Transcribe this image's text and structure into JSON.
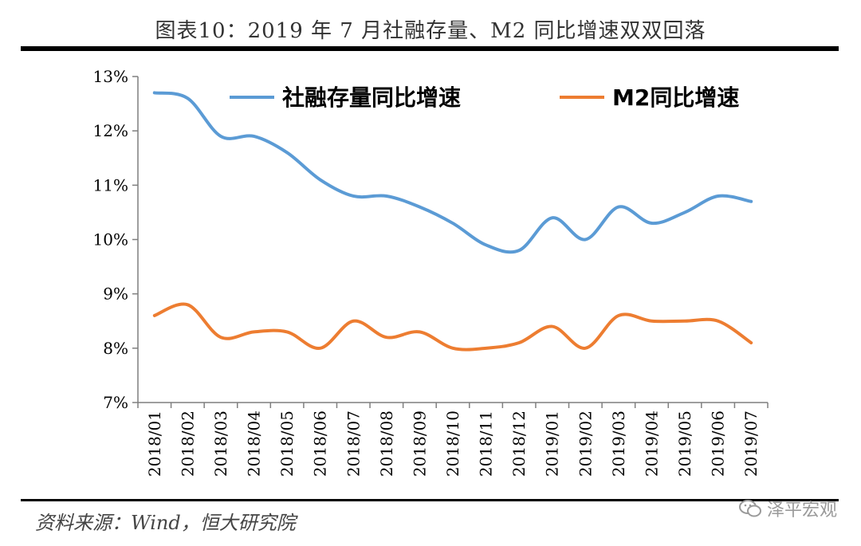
{
  "header": {
    "title": "图表10：2019 年 7 月社融存量、M2 同比增速双双回落"
  },
  "footer": {
    "source": "资料来源：Wind，恒大研究院",
    "watermark": "泽平宏观"
  },
  "colors": {
    "series1": "#5b9bd5",
    "series2": "#ed7d31",
    "axis": "#7f7f7f"
  },
  "chart_data": {
    "type": "line",
    "title": "",
    "xlabel": "",
    "ylabel": "",
    "ylim": [
      7,
      13
    ],
    "yticks": [
      7,
      8,
      9,
      10,
      11,
      12,
      13
    ],
    "ytick_labels": [
      "7%",
      "8%",
      "9%",
      "10%",
      "11%",
      "12%",
      "13%"
    ],
    "categories": [
      "2018/01",
      "2018/02",
      "2018/03",
      "2018/04",
      "2018/05",
      "2018/06",
      "2018/07",
      "2018/08",
      "2018/09",
      "2018/10",
      "2018/11",
      "2018/12",
      "2019/01",
      "2019/02",
      "2019/03",
      "2019/04",
      "2019/05",
      "2019/06",
      "2019/07"
    ],
    "legend_position": "top",
    "series": [
      {
        "name": "社融存量同比增速",
        "color": "#5b9bd5",
        "values": [
          12.7,
          12.6,
          11.9,
          11.9,
          11.6,
          11.1,
          10.8,
          10.8,
          10.6,
          10.3,
          9.9,
          9.8,
          10.4,
          10.0,
          10.6,
          10.3,
          10.5,
          10.8,
          10.7
        ]
      },
      {
        "name": "M2同比增速",
        "color": "#ed7d31",
        "values": [
          8.6,
          8.8,
          8.2,
          8.3,
          8.3,
          8.0,
          8.5,
          8.2,
          8.3,
          8.0,
          8.0,
          8.1,
          8.4,
          8.0,
          8.6,
          8.5,
          8.5,
          8.5,
          8.1
        ]
      }
    ]
  }
}
